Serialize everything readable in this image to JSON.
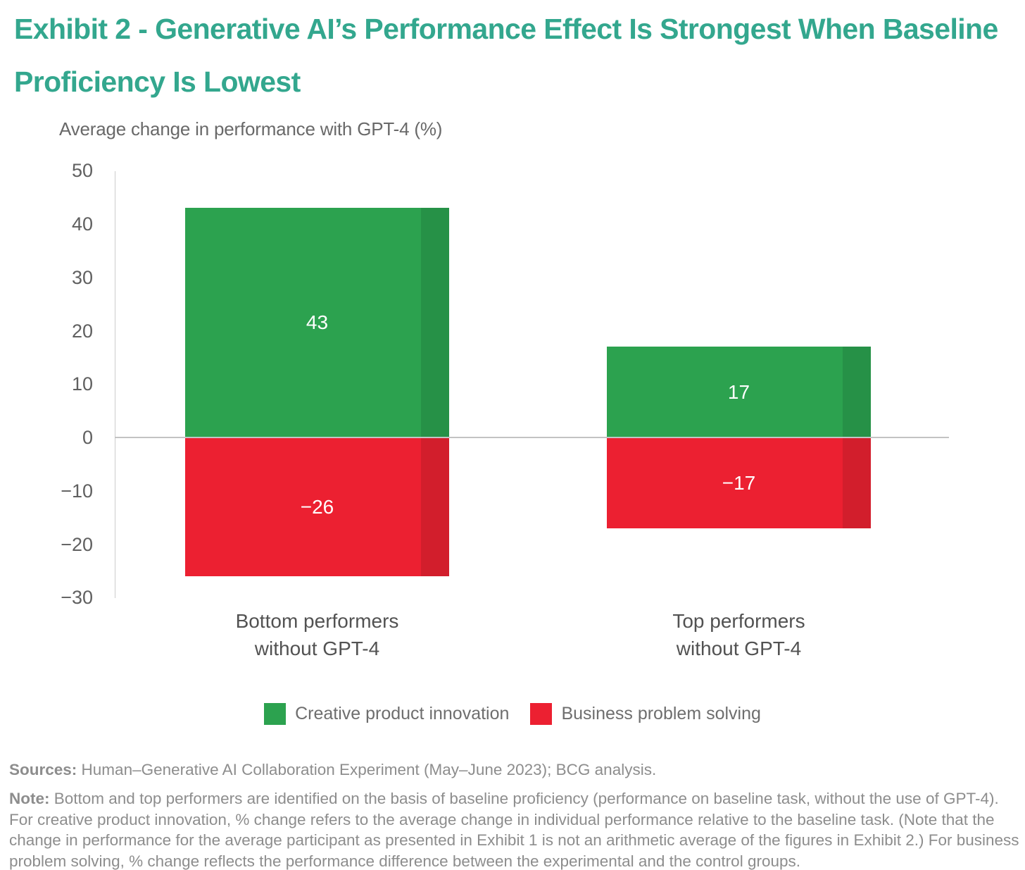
{
  "title": "Exhibit 2 - Generative AI’s Performance Effect Is Strongest When Baseline Proficiency Is Lowest",
  "colors": {
    "title_teal": "#33A78E",
    "green": "#2CA24F",
    "green_dark": "#269147",
    "red": "#EC2031",
    "red_dark": "#D21E2C",
    "zero_line": "#c3c3c3",
    "axis_line": "#cccccc"
  },
  "chart_data": {
    "type": "bar",
    "title": "",
    "axis_title": "Average change in performance with GPT-4 (%)",
    "xlabel": "",
    "ylabel": "Average change in performance with GPT-4 (%)",
    "ylim": [
      -30,
      50
    ],
    "grid": false,
    "legend_position": "bottom",
    "categories": [
      {
        "line1": "Bottom performers",
        "line2": "without GPT-4"
      },
      {
        "line1": "Top performers",
        "line2": "without GPT-4"
      }
    ],
    "series": [
      {
        "name": "Creative product innovation",
        "color": "#2CA24F",
        "color_dark": "#269147",
        "values": [
          43,
          17
        ],
        "labels": [
          "43",
          "17"
        ]
      },
      {
        "name": "Business problem solving",
        "color": "#EC2031",
        "color_dark": "#D21E2C",
        "values": [
          -26,
          -17
        ],
        "labels": [
          "−26",
          "−17"
        ]
      }
    ],
    "yticks": [
      50,
      40,
      30,
      20,
      10,
      0,
      -10,
      -20,
      -30
    ],
    "ytick_labels": [
      "50",
      "40",
      "30",
      "20",
      "10",
      "0",
      "−10",
      "−20",
      "−30"
    ]
  },
  "footer": {
    "sources_label": "Sources:",
    "sources_text": " Human–Generative AI Collaboration Experiment (May–June 2023); BCG analysis.",
    "note_label": "Note:",
    "note_text": " Bottom and top performers are identified on the basis of baseline proficiency (performance on baseline task, without the use of GPT-4). For creative product innovation, % change refers to the average change in individual performance relative to the baseline task. (Note that the change in performance for the average participant as presented in Exhibit 1 is not an arithmetic average of the figures in Exhibit 2.) For business problem solving, % change reflects the performance difference between the experimental and the control groups."
  }
}
